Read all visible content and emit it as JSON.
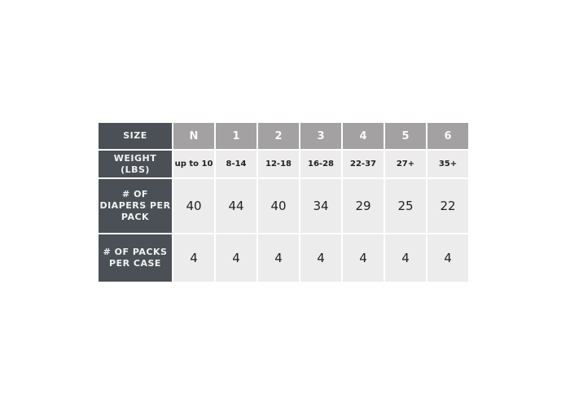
{
  "table": {
    "rows": [
      {
        "label": "SIZE",
        "cells": [
          "N",
          "1",
          "2",
          "3",
          "4",
          "5",
          "6"
        ]
      },
      {
        "label": "WEIGHT (LBS)",
        "cells": [
          "up to 10",
          "8-14",
          "12-18",
          "16-28",
          "22-37",
          "27+",
          "35+"
        ]
      },
      {
        "label": "# OF DIAPERS PER PACK",
        "cells": [
          "40",
          "44",
          "40",
          "34",
          "29",
          "25",
          "22"
        ]
      },
      {
        "label": "# OF PACKS PER CASE",
        "cells": [
          "4",
          "4",
          "4",
          "4",
          "4",
          "4",
          "4"
        ]
      }
    ]
  },
  "colors": {
    "label_bg": "#4b5056",
    "header_bg": "#a3a1a1",
    "cell_bg": "#ececec"
  }
}
